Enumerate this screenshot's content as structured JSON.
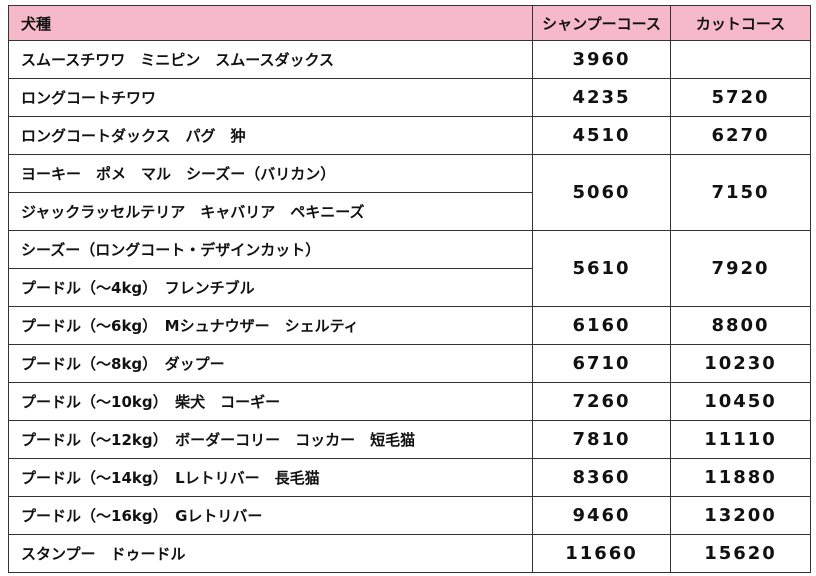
{
  "table": {
    "headers": [
      "犬種",
      "シャンプーコース",
      "カットコース"
    ],
    "rows": [
      {
        "breeds": [
          "スムースチワワ　ミニピン　スムースダックス"
        ],
        "shampoo": "3960"
      },
      {
        "breeds": [
          "ロングコートチワワ"
        ],
        "shampoo": "4235",
        "cut": "5720"
      },
      {
        "breeds": [
          "ロングコートダックス　パグ　狆"
        ],
        "shampoo": "4510",
        "cut": "6270"
      },
      {
        "breeds": [
          "ヨーキー　ポメ　マル　シーズー（バリカン）",
          "ジャックラッセルテリア　キャバリア　ペキニーズ"
        ],
        "shampoo": "5060",
        "cut": "7150"
      },
      {
        "breeds": [
          "シーズー（ロングコート・デザインカット）",
          "プードル（～4kg）　フレンチブル"
        ],
        "shampoo": "5610",
        "cut": "7920"
      },
      {
        "breeds": [
          "プードル（～6kg）　Mシュナウザー　シェルティ"
        ],
        "shampoo": "6160",
        "cut": "8800"
      },
      {
        "breeds": [
          "プードル（～8kg）　ダップー"
        ],
        "shampoo": "6710",
        "cut": "10230"
      },
      {
        "breeds": [
          "プードル（～10kg）　柴犬　コーギー"
        ],
        "shampoo": "7260",
        "cut": "10450"
      },
      {
        "breeds": [
          "プードル（～12kg）　ボーダーコリー　コッカー　短毛猫"
        ],
        "shampoo": "7810",
        "cut": "11110"
      },
      {
        "breeds": [
          "プードル（～14kg）　Lレトリバー　長毛猫"
        ],
        "shampoo": "8360",
        "cut": "11880"
      },
      {
        "breeds": [
          "プードル（～16kg）　Gレトリバー"
        ],
        "shampoo": "9460",
        "cut": "13200"
      },
      {
        "breeds": [
          "スタンプー　ドゥードル"
        ],
        "shampoo": "11660",
        "cut": "15620"
      }
    ]
  }
}
